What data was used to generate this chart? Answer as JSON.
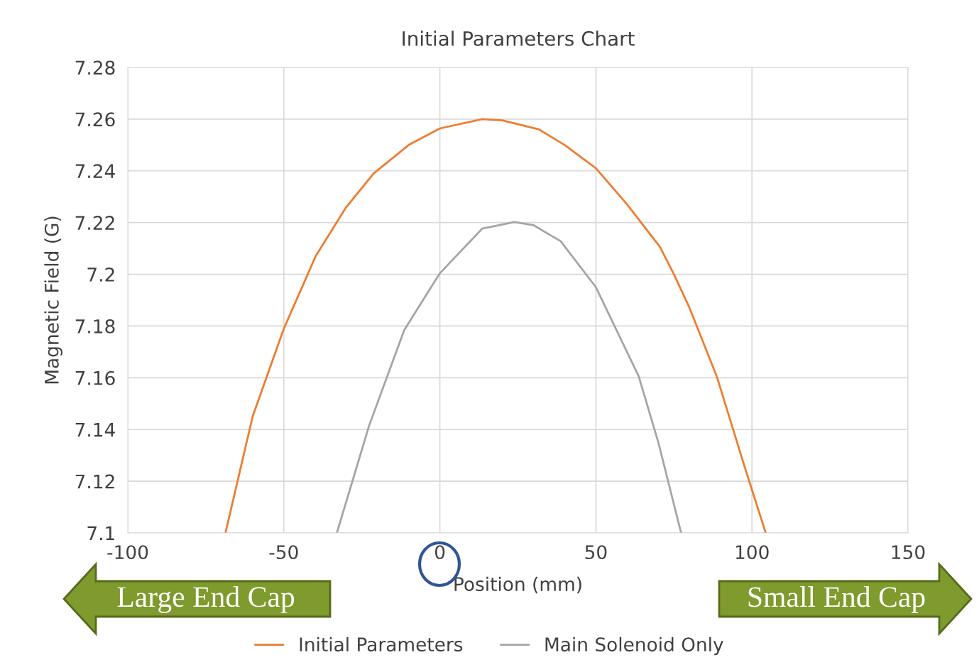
{
  "chart_data": {
    "type": "line",
    "title": "Initial Parameters Chart",
    "xlabel": "Position (mm)",
    "ylabel": "Magnetic Field (G)",
    "series": [
      {
        "name": "Initial Parameters",
        "color": "#ed7d31",
        "x": [
          -68.7,
          -60,
          -50,
          -39.8,
          -30,
          -21.2,
          -10,
          0,
          13.6,
          20,
          31.8,
          40,
          50,
          60,
          70.5,
          75,
          80,
          88.7,
          97.8,
          104.4
        ],
        "values": [
          7.1,
          7.145,
          7.179,
          7.207,
          7.226,
          7.239,
          7.25,
          7.2564,
          7.26,
          7.2595,
          7.256,
          7.25,
          7.241,
          7.227,
          7.2106,
          7.2,
          7.187,
          7.1606,
          7.125,
          7.1
        ]
      },
      {
        "name": "Main Solenoid Only",
        "color": "#a5a5a5",
        "x": [
          -33,
          -22.7,
          -11.4,
          0,
          13.6,
          23.9,
          30,
          38.7,
          50,
          63.7,
          70,
          77.3
        ],
        "values": [
          7.1,
          7.1414,
          7.1785,
          7.2004,
          7.2177,
          7.2202,
          7.219,
          7.2128,
          7.195,
          7.1606,
          7.135,
          7.1
        ]
      }
    ],
    "xlim": [
      -100,
      150
    ],
    "xticks": [
      -100,
      -50,
      0,
      50,
      100,
      150
    ],
    "ylim": [
      7.1,
      7.28
    ],
    "yticks": [
      {
        "value": 7.1,
        "label": "7.1"
      },
      {
        "value": 7.12,
        "label": "7.12"
      },
      {
        "value": 7.14,
        "label": "7.14"
      },
      {
        "value": 7.16,
        "label": "7.16"
      },
      {
        "value": 7.18,
        "label": "7.18"
      },
      {
        "value": 7.2,
        "label": "7.2"
      },
      {
        "value": 7.22,
        "label": "7.22"
      },
      {
        "value": 7.24,
        "label": "7.24"
      },
      {
        "value": 7.26,
        "label": "7.26"
      },
      {
        "value": 7.28,
        "label": "7.28"
      }
    ],
    "grid": true,
    "legend": "bottom",
    "annotations": [
      "Large End Cap",
      "Small End Cap"
    ]
  }
}
